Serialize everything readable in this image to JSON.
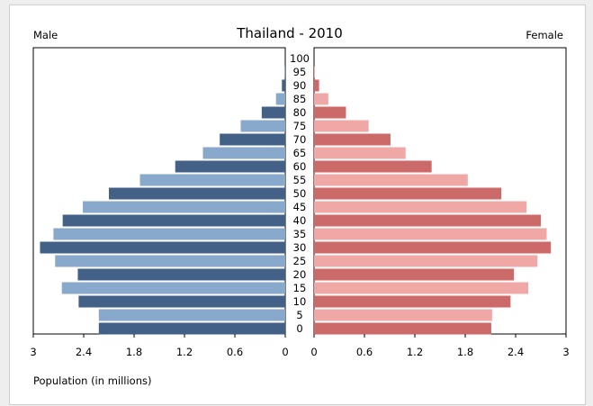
{
  "chart_data": {
    "type": "bar",
    "title": "Thailand - 2010",
    "xlabel": "Population (in millions)",
    "left_label": "Male",
    "right_label": "Female",
    "xlim": [
      0,
      3
    ],
    "xticks_left": [
      "3",
      "2.4",
      "1.8",
      "1.2",
      "0.6",
      "0"
    ],
    "xticks_right": [
      "0",
      "0.6",
      "1.2",
      "1.8",
      "2.4",
      "3"
    ],
    "tick_values": [
      0,
      0.6,
      1.2,
      1.8,
      2.4,
      3
    ],
    "categories": [
      "0",
      "5",
      "10",
      "15",
      "20",
      "25",
      "30",
      "35",
      "40",
      "45",
      "50",
      "55",
      "60",
      "65",
      "70",
      "75",
      "80",
      "85",
      "90",
      "95",
      "100"
    ],
    "series": [
      {
        "name": "Male",
        "values": [
          2.22,
          2.22,
          2.46,
          2.66,
          2.47,
          2.74,
          2.92,
          2.76,
          2.65,
          2.41,
          2.1,
          1.73,
          1.31,
          0.98,
          0.78,
          0.53,
          0.28,
          0.11,
          0.04,
          0.01,
          0.0
        ]
      },
      {
        "name": "Female",
        "values": [
          2.11,
          2.12,
          2.34,
          2.55,
          2.38,
          2.66,
          2.82,
          2.77,
          2.7,
          2.53,
          2.23,
          1.83,
          1.4,
          1.09,
          0.91,
          0.65,
          0.38,
          0.17,
          0.06,
          0.01,
          0.0
        ]
      }
    ],
    "colors": {
      "male_dark": "#436187",
      "male_light": "#88a8cc",
      "female_dark": "#cc6a6a",
      "female_light": "#f0a8a6"
    }
  }
}
